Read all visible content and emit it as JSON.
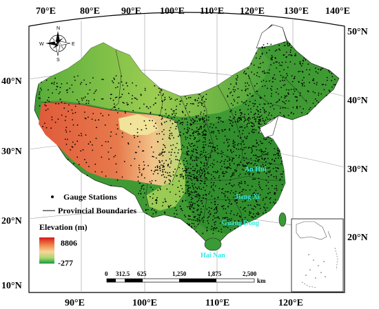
{
  "map": {
    "top_longitude_labels": [
      "70°E",
      "80°E",
      "90°E",
      "100°E",
      "110°E",
      "120°E",
      "130°E",
      "140°E"
    ],
    "bottom_longitude_labels": [
      "90°E",
      "100°E",
      "110°E",
      "120°E"
    ],
    "left_latitude_labels": [
      "40°N",
      "30°N",
      "20°N",
      "10°N"
    ],
    "right_latitude_labels": [
      "50°N",
      "40°N",
      "30°N",
      "20°N"
    ],
    "province_labels": [
      "An Hui",
      "Jiang Xi",
      "Guang Dong",
      "Hai Nan"
    ],
    "compass": {
      "n": "N",
      "s": "S",
      "e": "E",
      "w": "W"
    }
  },
  "legend": {
    "gauge_stations": "Gauge Stations",
    "provincial_boundaries": "Provincial Boundaries",
    "elevation_title": "Elevation (m)",
    "elevation_max": "8806",
    "elevation_min": "-277",
    "ramp_colors": [
      "#d7191c",
      "#f08a4b",
      "#f7d59a",
      "#a9d86e",
      "#1a9641"
    ]
  },
  "scale_bar": {
    "labels": [
      "0",
      "312.5",
      "625",
      "1,250",
      "1,875",
      "2,500"
    ],
    "unit": "km"
  },
  "colors": {
    "lowland_green": "#3f9a33",
    "midland_green": "#8cc63f",
    "highland_red": "#e2553a",
    "plateau_yellow": "#f1e39a",
    "ocean": "#ffffff",
    "label_cyan": "#37e6e0"
  }
}
